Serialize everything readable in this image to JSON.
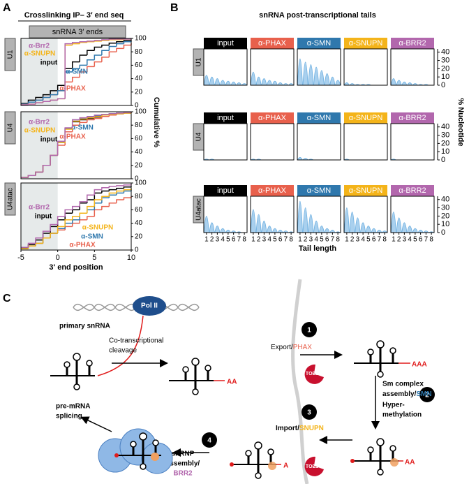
{
  "panels": {
    "a": "A",
    "b": "B",
    "c": "C"
  },
  "chart_data": [
    {
      "type": "step",
      "title": "Crosslinking IP– 3′ end seq",
      "header": "snRNA 3′ ends",
      "row_label": "U1",
      "x": [
        -5,
        -4,
        -3,
        -2,
        -1,
        0,
        1,
        2,
        3,
        4,
        5,
        6,
        7,
        8,
        9,
        10
      ],
      "xlim": [
        -5,
        10
      ],
      "ylim": [
        0,
        100
      ],
      "yticks": [
        0,
        20,
        40,
        60,
        80,
        100
      ],
      "series": [
        {
          "name": "input",
          "color": "#000000",
          "values": [
            3,
            8,
            12,
            16,
            22,
            30,
            55,
            65,
            75,
            82,
            87,
            90,
            93,
            95,
            97,
            98
          ]
        },
        {
          "name": "α-PHAX",
          "color": "#e8604c",
          "values": [
            2,
            5,
            8,
            12,
            16,
            22,
            35,
            42,
            50,
            58,
            65,
            72,
            80,
            85,
            90,
            93
          ]
        },
        {
          "name": "α-SMN",
          "color": "#2f78ad",
          "values": [
            2,
            5,
            8,
            12,
            16,
            22,
            50,
            55,
            60,
            68,
            75,
            82,
            88,
            92,
            95,
            96
          ]
        },
        {
          "name": "α-SNUPN",
          "color": "#f4b41a",
          "values": [
            1,
            2,
            4,
            6,
            8,
            10,
            90,
            92,
            94,
            95,
            96,
            97,
            98,
            98,
            99,
            99
          ]
        },
        {
          "name": "α-Brr2",
          "color": "#b267ad",
          "values": [
            1,
            2,
            4,
            6,
            8,
            10,
            92,
            94,
            95,
            96,
            97,
            98,
            99,
            99,
            99,
            99
          ]
        }
      ]
    },
    {
      "type": "step",
      "row_label": "U4",
      "ylabel": "Cumulative %",
      "x": [
        -5,
        -4,
        -3,
        -2,
        -1,
        0,
        1,
        2,
        3,
        4,
        5,
        6,
        7,
        8,
        9,
        10
      ],
      "xlim": [
        -5,
        10
      ],
      "ylim": [
        0,
        100
      ],
      "yticks": [
        0,
        20,
        40,
        60,
        80,
        100
      ],
      "series": [
        {
          "name": "input",
          "color": "#000000",
          "values": [
            2,
            5,
            10,
            20,
            35,
            55,
            75,
            85,
            88,
            90,
            92,
            95,
            96,
            97,
            98,
            99
          ]
        },
        {
          "name": "α-PHAX",
          "color": "#e8604c",
          "values": [
            2,
            5,
            10,
            20,
            35,
            50,
            70,
            80,
            84,
            88,
            90,
            93,
            95,
            97,
            98,
            99
          ]
        },
        {
          "name": "α-SMN",
          "color": "#2f78ad",
          "values": [
            2,
            5,
            10,
            20,
            35,
            55,
            75,
            88,
            90,
            92,
            94,
            96,
            97,
            98,
            99,
            99
          ]
        },
        {
          "name": "α-SNUPN",
          "color": "#f4b41a",
          "values": [
            2,
            5,
            10,
            20,
            35,
            54,
            74,
            86,
            89,
            91,
            93,
            95,
            96,
            97,
            98,
            99
          ]
        },
        {
          "name": "α-Brr2",
          "color": "#b267ad",
          "values": [
            2,
            5,
            10,
            20,
            35,
            56,
            76,
            88,
            91,
            93,
            95,
            96,
            97,
            98,
            99,
            99
          ]
        }
      ]
    },
    {
      "type": "step",
      "row_label": "U4atac",
      "xlabel": "3' end position",
      "x": [
        -5,
        -4,
        -3,
        -2,
        -1,
        0,
        1,
        2,
        3,
        4,
        5,
        6,
        7,
        8,
        9,
        10
      ],
      "xlim": [
        -5,
        10
      ],
      "ylim": [
        0,
        100
      ],
      "yticks": [
        0,
        20,
        40,
        60,
        80,
        100
      ],
      "xticks": [
        -5,
        0,
        5,
        10
      ],
      "series": [
        {
          "name": "input",
          "color": "#000000",
          "values": [
            3,
            8,
            15,
            25,
            35,
            45,
            55,
            60,
            70,
            75,
            85,
            88,
            90,
            92,
            94,
            95
          ]
        },
        {
          "name": "α-PHAX",
          "color": "#e8604c",
          "values": [
            2,
            6,
            10,
            18,
            25,
            30,
            35,
            40,
            45,
            50,
            60,
            65,
            70,
            75,
            78,
            80
          ]
        },
        {
          "name": "α-SMN",
          "color": "#2f78ad",
          "values": [
            2,
            6,
            10,
            18,
            25,
            32,
            40,
            45,
            55,
            60,
            70,
            78,
            82,
            85,
            88,
            90
          ]
        },
        {
          "name": "α-SNUPN",
          "color": "#f4b41a",
          "values": [
            2,
            6,
            10,
            18,
            25,
            35,
            45,
            50,
            55,
            65,
            75,
            80,
            85,
            88,
            90,
            92
          ]
        },
        {
          "name": "α-Brr2",
          "color": "#b267ad",
          "values": [
            4,
            10,
            18,
            28,
            38,
            50,
            60,
            65,
            72,
            82,
            90,
            93,
            95,
            96,
            97,
            98
          ]
        }
      ]
    },
    {
      "type": "tails",
      "title": "snRNA post-transcriptional tails",
      "xlabel": "Tail length",
      "ylabel": "% Nucleotide",
      "rows": [
        "U1",
        "U4",
        "U4atac"
      ],
      "xticks": [
        1,
        2,
        3,
        4,
        5,
        6,
        7,
        8
      ],
      "xlim": [
        0.5,
        8.5
      ],
      "ylim": [
        0,
        44
      ],
      "yticks": [
        0,
        10,
        20,
        30,
        40
      ],
      "series": [
        {
          "name": "input",
          "color": "#000000",
          "values": [
            [
              12,
              10,
              8,
              6,
              5,
              4,
              3,
              2
            ],
            [
              1,
              1,
              0,
              0,
              0,
              0,
              0,
              0
            ],
            [
              20,
              12,
              8,
              5,
              3,
              2,
              1,
              0
            ]
          ]
        },
        {
          "name": "α-PHAX",
          "color": "#e8604c",
          "values": [
            [
              16,
              10,
              8,
              6,
              5,
              3,
              2,
              2
            ],
            [
              1,
              1,
              0,
              0,
              0,
              0,
              0,
              0
            ],
            [
              28,
              22,
              14,
              8,
              5,
              3,
              2,
              1
            ]
          ]
        },
        {
          "name": "α-SMN",
          "color": "#2f78ad",
          "values": [
            [
              32,
              28,
              25,
              22,
              18,
              14,
              10,
              6
            ],
            [
              3,
              2,
              1,
              0,
              0,
              0,
              0,
              0
            ],
            [
              38,
              30,
              22,
              14,
              8,
              5,
              3,
              1
            ]
          ]
        },
        {
          "name": "α-SNUPN",
          "color": "#f4b41a",
          "values": [
            [
              3,
              2,
              1,
              1,
              1,
              0,
              0,
              0
            ],
            [
              1,
              0,
              0,
              0,
              0,
              0,
              0,
              0
            ],
            [
              30,
              25,
              18,
              12,
              8,
              5,
              3,
              2
            ]
          ]
        },
        {
          "name": "α-BRR2",
          "color": "#b267ad",
          "values": [
            [
              8,
              6,
              4,
              3,
              2,
              1,
              1,
              0
            ],
            [
              1,
              0,
              0,
              0,
              0,
              0,
              0,
              0
            ],
            [
              25,
              18,
              12,
              8,
              5,
              3,
              2,
              1
            ]
          ]
        }
      ]
    }
  ],
  "diagram": {
    "pol": "Pol II",
    "primary": "primary snRNA",
    "cleavage": [
      "Co-transcriptional",
      "cleavage"
    ],
    "tail_cleaved": "AA",
    "tail_exported": "AAA",
    "tail_imported": "A",
    "tail_methylated": "AA",
    "toe1": "TOE1",
    "step1": {
      "number": "1",
      "text": "Export/",
      "factor": "PHAX"
    },
    "step2": {
      "number": "2",
      "lines": [
        "Sm complex",
        "assembly/"
      ],
      "factor": "SMN",
      "more": [
        "Hyper-",
        "methylation"
      ]
    },
    "step3": {
      "number": "3",
      "text": "Import/",
      "factor": "SNUPN"
    },
    "step4": {
      "number": "4",
      "lines": [
        "snRNP",
        "assembly/"
      ],
      "factor": "BRR2"
    },
    "splicing": [
      "pre-mRNA",
      "splicing"
    ]
  }
}
